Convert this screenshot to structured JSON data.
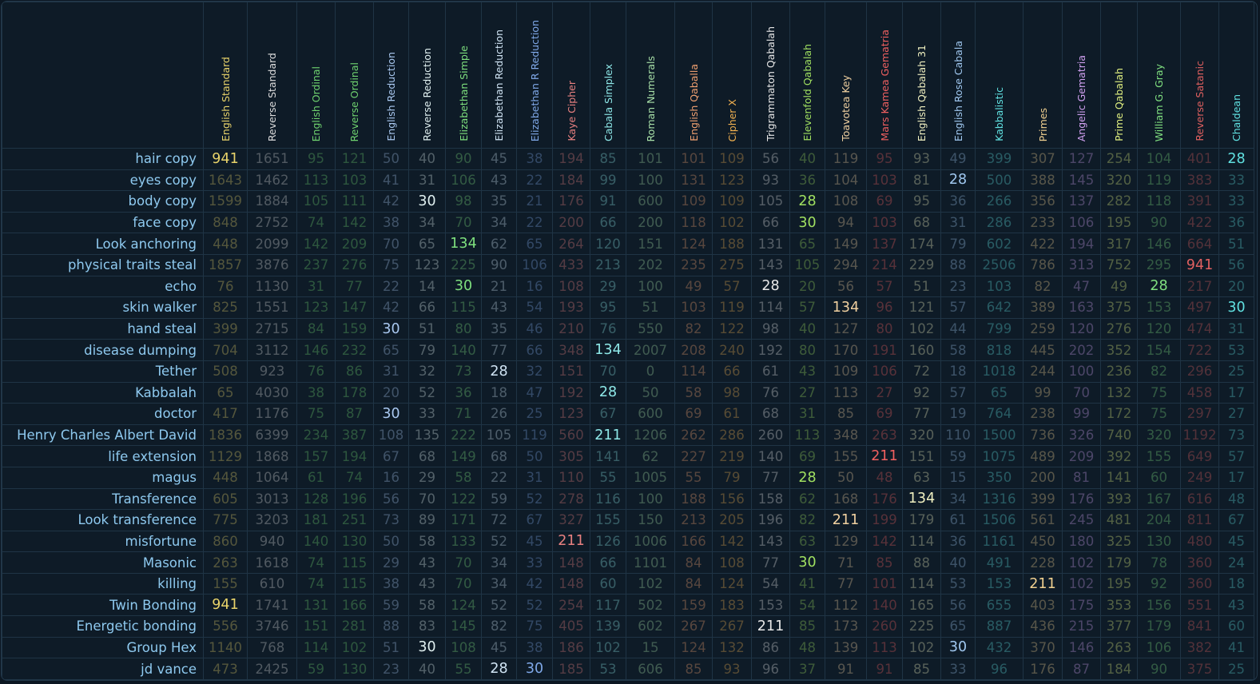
{
  "table": {
    "highlight_values": [
      941,
      211,
      134,
      30,
      28
    ],
    "columns": [
      {
        "name": "English Standard",
        "color": "#e8d36a"
      },
      {
        "name": "Reverse Standard",
        "color": "#dcdcdc"
      },
      {
        "name": "English Ordinal",
        "color": "#6fd36f"
      },
      {
        "name": "Reverse Ordinal",
        "color": "#6fd36f"
      },
      {
        "name": "English Reduction",
        "color": "#a9c8f0"
      },
      {
        "name": "Reverse Reduction",
        "color": "#e0f0f0"
      },
      {
        "name": "Elizabethan Simple",
        "color": "#7ee07e"
      },
      {
        "name": "Elizabethan Reduction",
        "color": "#d0e4f4"
      },
      {
        "name": "Elizabethan R Reduction",
        "color": "#7fa8e8"
      },
      {
        "name": "Kaye Cipher",
        "color": "#e88080"
      },
      {
        "name": "Cabala Simplex",
        "color": "#8ee8e8"
      },
      {
        "name": "Roman Numerals",
        "color": "#a8e0a8"
      },
      {
        "name": "English Qaballa",
        "color": "#f0a070"
      },
      {
        "name": "Cipher X",
        "color": "#f0b050"
      },
      {
        "name": "Trigrammaton Qabalah",
        "color": "#e8e8e8"
      },
      {
        "name": "Elevenfold Qabalah",
        "color": "#a0e060"
      },
      {
        "name": "Toavotea Key",
        "color": "#f0d0a0"
      },
      {
        "name": "Mars Kamea Gematria",
        "color": "#f06060"
      },
      {
        "name": "English Qabalah 31",
        "color": "#f0f0c0"
      },
      {
        "name": "English Rose Cabala",
        "color": "#a0c8f0"
      },
      {
        "name": "Kabbalistic",
        "color": "#60e0e0"
      },
      {
        "name": "Primes",
        "color": "#f0d090"
      },
      {
        "name": "Angelic Gematria",
        "color": "#d0a0f0"
      },
      {
        "name": "Prime Qabalah",
        "color": "#e0f080"
      },
      {
        "name": "William G. Gray",
        "color": "#80e080"
      },
      {
        "name": "Reverse Satanic",
        "color": "#e06060"
      },
      {
        "name": "Chaldean",
        "color": "#60e0e0"
      }
    ],
    "rows": [
      {
        "label": "hair copy",
        "values": [
          941,
          1651,
          95,
          121,
          50,
          40,
          90,
          45,
          38,
          194,
          85,
          101,
          101,
          109,
          56,
          40,
          119,
          95,
          93,
          49,
          399,
          307,
          127,
          254,
          104,
          401,
          28
        ]
      },
      {
        "label": "eyes copy",
        "values": [
          1643,
          1462,
          113,
          103,
          41,
          31,
          106,
          43,
          22,
          184,
          99,
          100,
          131,
          123,
          93,
          36,
          104,
          103,
          81,
          28,
          500,
          388,
          145,
          320,
          119,
          383,
          33
        ]
      },
      {
        "label": "body copy",
        "values": [
          1599,
          1884,
          105,
          111,
          42,
          30,
          98,
          35,
          21,
          176,
          91,
          600,
          109,
          109,
          105,
          28,
          108,
          69,
          95,
          36,
          266,
          356,
          137,
          282,
          118,
          391,
          33
        ]
      },
      {
        "label": "face copy",
        "values": [
          848,
          2752,
          74,
          142,
          38,
          34,
          70,
          34,
          22,
          200,
          66,
          200,
          118,
          102,
          66,
          30,
          94,
          103,
          68,
          31,
          286,
          233,
          106,
          195,
          90,
          422,
          36
        ]
      },
      {
        "label": "Look anchoring",
        "values": [
          448,
          2099,
          142,
          209,
          70,
          65,
          134,
          62,
          65,
          264,
          120,
          151,
          124,
          188,
          131,
          65,
          149,
          137,
          174,
          79,
          602,
          422,
          194,
          317,
          146,
          664,
          51
        ]
      },
      {
        "label": "physical traits steal",
        "values": [
          1857,
          3876,
          237,
          276,
          75,
          123,
          225,
          90,
          106,
          433,
          213,
          202,
          235,
          275,
          143,
          105,
          294,
          214,
          229,
          88,
          2506,
          786,
          313,
          752,
          295,
          941,
          56
        ]
      },
      {
        "label": "echo",
        "values": [
          76,
          1130,
          31,
          77,
          22,
          14,
          30,
          21,
          16,
          108,
          29,
          100,
          49,
          57,
          28,
          20,
          56,
          57,
          51,
          23,
          103,
          82,
          47,
          49,
          28,
          217,
          20
        ]
      },
      {
        "label": "skin walker",
        "values": [
          825,
          1551,
          123,
          147,
          42,
          66,
          115,
          43,
          54,
          193,
          95,
          51,
          103,
          119,
          114,
          57,
          134,
          96,
          121,
          57,
          642,
          389,
          163,
          375,
          153,
          497,
          30
        ]
      },
      {
        "label": "hand steal",
        "values": [
          399,
          2715,
          84,
          159,
          30,
          51,
          80,
          35,
          46,
          210,
          76,
          550,
          82,
          122,
          98,
          40,
          127,
          80,
          102,
          44,
          799,
          259,
          120,
          276,
          120,
          474,
          31
        ]
      },
      {
        "label": "disease dumping",
        "values": [
          704,
          3112,
          146,
          232,
          65,
          79,
          140,
          77,
          66,
          348,
          134,
          2007,
          208,
          240,
          192,
          80,
          170,
          191,
          160,
          58,
          818,
          445,
          202,
          352,
          154,
          722,
          53
        ]
      },
      {
        "label": "Tether",
        "values": [
          508,
          923,
          76,
          86,
          31,
          32,
          73,
          28,
          32,
          151,
          70,
          0,
          114,
          66,
          61,
          43,
          109,
          106,
          72,
          18,
          1018,
          244,
          100,
          236,
          82,
          296,
          25
        ]
      },
      {
        "label": "Kabbalah",
        "values": [
          65,
          4030,
          38,
          178,
          20,
          52,
          36,
          18,
          47,
          192,
          28,
          50,
          58,
          98,
          76,
          27,
          113,
          27,
          92,
          57,
          65,
          99,
          70,
          132,
          75,
          458,
          17
        ]
      },
      {
        "label": "doctor",
        "values": [
          417,
          1176,
          75,
          87,
          30,
          33,
          71,
          26,
          25,
          123,
          67,
          600,
          69,
          61,
          68,
          31,
          85,
          69,
          77,
          19,
          764,
          238,
          99,
          172,
          75,
          297,
          27
        ]
      },
      {
        "label": "Henry Charles Albert David",
        "values": [
          1836,
          6399,
          234,
          387,
          108,
          135,
          222,
          105,
          119,
          560,
          211,
          1206,
          262,
          286,
          260,
          113,
          348,
          263,
          320,
          110,
          1500,
          736,
          326,
          740,
          320,
          1192,
          73
        ]
      },
      {
        "label": "life extension",
        "values": [
          1129,
          1868,
          157,
          194,
          67,
          68,
          149,
          68,
          50,
          305,
          141,
          62,
          227,
          219,
          140,
          69,
          155,
          211,
          151,
          59,
          1075,
          489,
          209,
          392,
          155,
          649,
          57
        ]
      },
      {
        "label": "magus",
        "values": [
          448,
          1064,
          61,
          74,
          16,
          29,
          58,
          22,
          31,
          110,
          55,
          1005,
          55,
          79,
          77,
          28,
          50,
          48,
          63,
          15,
          350,
          200,
          81,
          141,
          60,
          249,
          17
        ]
      },
      {
        "label": "Transference",
        "values": [
          605,
          3013,
          128,
          196,
          56,
          70,
          122,
          59,
          52,
          278,
          116,
          100,
          188,
          156,
          158,
          62,
          168,
          176,
          134,
          34,
          1316,
          399,
          176,
          393,
          167,
          616,
          48
        ]
      },
      {
        "label": "Look transference",
        "values": [
          775,
          3203,
          181,
          251,
          73,
          89,
          171,
          72,
          67,
          327,
          155,
          150,
          213,
          205,
          196,
          82,
          211,
          199,
          179,
          61,
          1506,
          561,
          245,
          481,
          204,
          811,
          67
        ]
      },
      {
        "label": "misfortune",
        "values": [
          860,
          940,
          140,
          130,
          50,
          58,
          133,
          52,
          45,
          211,
          126,
          1006,
          166,
          142,
          143,
          63,
          129,
          142,
          114,
          36,
          1161,
          450,
          180,
          325,
          130,
          480,
          45
        ]
      },
      {
        "label": "Masonic",
        "values": [
          263,
          1618,
          74,
          115,
          29,
          43,
          70,
          34,
          33,
          148,
          66,
          1101,
          84,
          108,
          77,
          30,
          71,
          85,
          88,
          40,
          491,
          228,
          102,
          179,
          78,
          360,
          24
        ]
      },
      {
        "label": "killing",
        "values": [
          155,
          610,
          74,
          115,
          38,
          43,
          70,
          34,
          42,
          148,
          60,
          102,
          84,
          124,
          54,
          41,
          77,
          101,
          114,
          53,
          153,
          211,
          102,
          195,
          92,
          360,
          18
        ]
      },
      {
        "label": "Twin Bonding",
        "values": [
          941,
          1741,
          131,
          166,
          59,
          58,
          124,
          52,
          52,
          254,
          117,
          502,
          159,
          183,
          153,
          54,
          112,
          140,
          165,
          56,
          655,
          403,
          175,
          353,
          156,
          551,
          43
        ]
      },
      {
        "label": "Energetic bonding",
        "values": [
          556,
          3746,
          151,
          281,
          88,
          83,
          145,
          82,
          75,
          405,
          139,
          602,
          267,
          267,
          211,
          85,
          173,
          260,
          225,
          65,
          887,
          436,
          215,
          377,
          179,
          841,
          60
        ]
      },
      {
        "label": "Group Hex",
        "values": [
          1140,
          768,
          114,
          102,
          51,
          30,
          108,
          45,
          38,
          186,
          102,
          15,
          124,
          132,
          86,
          48,
          139,
          113,
          102,
          30,
          432,
          370,
          146,
          263,
          106,
          382,
          41
        ]
      },
      {
        "label": "jd vance",
        "values": [
          473,
          2425,
          59,
          130,
          23,
          40,
          55,
          28,
          30,
          185,
          53,
          606,
          85,
          93,
          96,
          37,
          91,
          91,
          85,
          33,
          96,
          176,
          87,
          184,
          90,
          375,
          25
        ]
      }
    ]
  }
}
